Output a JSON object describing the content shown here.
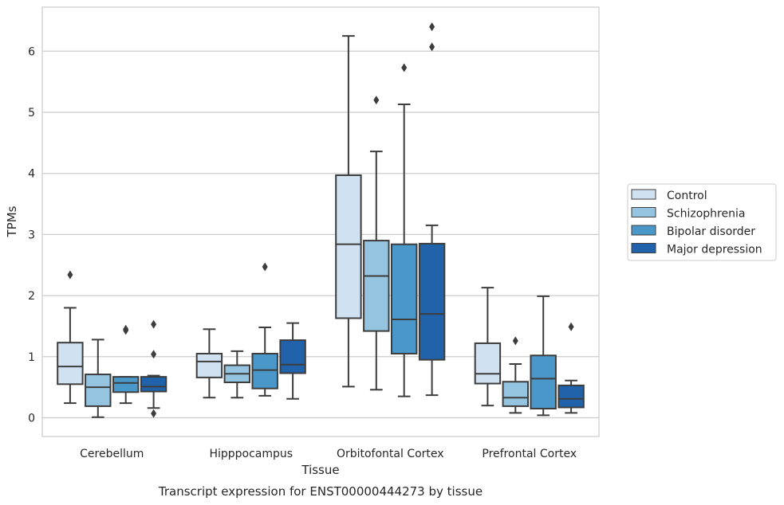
{
  "chart_data": {
    "type": "boxplot",
    "caption": "Transcript expression for ENST00000444273 by tissue",
    "xlabel": "Tissue",
    "ylabel": "TPMs",
    "ylim": [
      -0.3,
      6.7
    ],
    "yticks": [
      0,
      1,
      2,
      3,
      4,
      5,
      6
    ],
    "grid": "horizontal",
    "legend_position": "right",
    "categories": [
      "Cerebellum",
      "Hipppocampus",
      "Orbitofontal Cortex",
      "Prefrontal Cortex"
    ],
    "series": [
      {
        "name": "Control",
        "color": "#d0e1f2",
        "boxes": [
          {
            "whislo": 0.24,
            "q1": 0.55,
            "med": 0.84,
            "q3": 1.23,
            "whishi": 1.8,
            "fliers": [
              2.34
            ]
          },
          {
            "whislo": 0.33,
            "q1": 0.66,
            "med": 0.92,
            "q3": 1.05,
            "whishi": 1.45,
            "fliers": []
          },
          {
            "whislo": 0.51,
            "q1": 1.63,
            "med": 2.84,
            "q3": 3.97,
            "whishi": 6.25,
            "fliers": []
          },
          {
            "whislo": 0.2,
            "q1": 0.56,
            "med": 0.72,
            "q3": 1.22,
            "whishi": 2.13,
            "fliers": []
          }
        ]
      },
      {
        "name": "Schizophrenia",
        "color": "#94c4df",
        "boxes": [
          {
            "whislo": 0.01,
            "q1": 0.19,
            "med": 0.5,
            "q3": 0.71,
            "whishi": 1.28,
            "fliers": []
          },
          {
            "whislo": 0.33,
            "q1": 0.58,
            "med": 0.72,
            "q3": 0.86,
            "whishi": 1.09,
            "fliers": []
          },
          {
            "whislo": 0.46,
            "q1": 1.42,
            "med": 2.32,
            "q3": 2.9,
            "whishi": 4.36,
            "fliers": [
              5.2
            ]
          },
          {
            "whislo": 0.08,
            "q1": 0.19,
            "med": 0.33,
            "q3": 0.59,
            "whishi": 0.88,
            "fliers": [
              1.26
            ]
          }
        ]
      },
      {
        "name": "Bipolar disorder",
        "color": "#4a98c9",
        "boxes": [
          {
            "whislo": 0.24,
            "q1": 0.42,
            "med": 0.57,
            "q3": 0.67,
            "whishi": 0.67,
            "fliers": [
              1.43,
              1.45
            ]
          },
          {
            "whislo": 0.36,
            "q1": 0.48,
            "med": 0.78,
            "q3": 1.05,
            "whishi": 1.48,
            "fliers": [
              2.47
            ]
          },
          {
            "whislo": 0.35,
            "q1": 1.05,
            "med": 1.61,
            "q3": 2.84,
            "whishi": 5.13,
            "fliers": [
              5.73
            ]
          },
          {
            "whislo": 0.04,
            "q1": 0.15,
            "med": 0.64,
            "q3": 1.02,
            "whishi": 1.99,
            "fliers": []
          }
        ]
      },
      {
        "name": "Major depression",
        "color": "#2163aa",
        "boxes": [
          {
            "whislo": 0.16,
            "q1": 0.43,
            "med": 0.51,
            "q3": 0.67,
            "whishi": 0.69,
            "fliers": [
              1.53,
              1.04,
              0.07
            ]
          },
          {
            "whislo": 0.31,
            "q1": 0.73,
            "med": 0.87,
            "q3": 1.27,
            "whishi": 1.55,
            "fliers": []
          },
          {
            "whislo": 0.37,
            "q1": 0.95,
            "med": 1.7,
            "q3": 2.85,
            "whishi": 3.15,
            "fliers": [
              6.07,
              6.4
            ]
          },
          {
            "whislo": 0.08,
            "q1": 0.17,
            "med": 0.31,
            "q3": 0.53,
            "whishi": 0.61,
            "fliers": [
              1.49
            ]
          }
        ]
      }
    ]
  }
}
